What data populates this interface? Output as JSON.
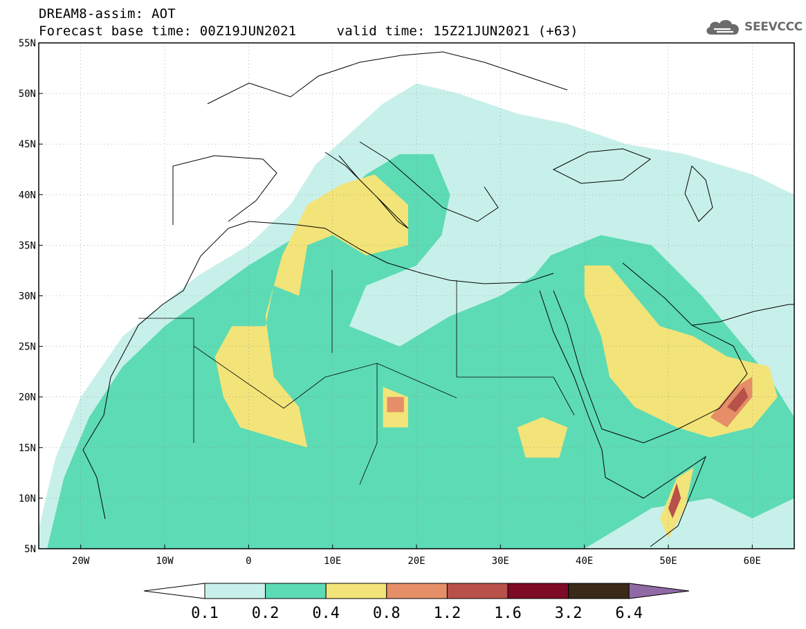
{
  "header": {
    "title_line1": "DREAM8-assim: AOT",
    "title_line2": "Forecast base time: 00Z19JUN2021     valid time: 15Z21JUN2021 (+63)"
  },
  "logo": {
    "text": "SEEVCCC",
    "icon": "cloud-icon"
  },
  "map": {
    "projection": "lat-lon",
    "lon_range": [
      -25,
      65
    ],
    "lat_range": [
      5,
      55
    ],
    "grid": "dotted",
    "lat_ticks": [
      {
        "value": 55,
        "label": "55N"
      },
      {
        "value": 50,
        "label": "50N"
      },
      {
        "value": 45,
        "label": "45N"
      },
      {
        "value": 40,
        "label": "40N"
      },
      {
        "value": 35,
        "label": "35N"
      },
      {
        "value": 30,
        "label": "30N"
      },
      {
        "value": 25,
        "label": "25N"
      },
      {
        "value": 20,
        "label": "20N"
      },
      {
        "value": 15,
        "label": "15N"
      },
      {
        "value": 10,
        "label": "10N"
      },
      {
        "value": 5,
        "label": "5N"
      }
    ],
    "lon_ticks": [
      {
        "value": -20,
        "label": "20W"
      },
      {
        "value": -10,
        "label": "10W"
      },
      {
        "value": 0,
        "label": "0"
      },
      {
        "value": 10,
        "label": "10E"
      },
      {
        "value": 20,
        "label": "20E"
      },
      {
        "value": 30,
        "label": "30E"
      },
      {
        "value": 40,
        "label": "40E"
      },
      {
        "value": 50,
        "label": "50E"
      },
      {
        "value": 60,
        "label": "60E"
      }
    ],
    "fields": [
      {
        "level": 0,
        "points": [
          [
            -25,
            7
          ],
          [
            -23,
            14
          ],
          [
            -20,
            20
          ],
          [
            -15,
            26
          ],
          [
            -6,
            32
          ],
          [
            0,
            35
          ],
          [
            5,
            39
          ],
          [
            8,
            43
          ],
          [
            12,
            46
          ],
          [
            16,
            49
          ],
          [
            20,
            51
          ],
          [
            25,
            50
          ],
          [
            32,
            48
          ],
          [
            38,
            47
          ],
          [
            45,
            45
          ],
          [
            52,
            44
          ],
          [
            60,
            42
          ],
          [
            65,
            40
          ],
          [
            65,
            5
          ],
          [
            -25,
            5
          ]
        ]
      },
      {
        "level": 1,
        "points": [
          [
            -24,
            5
          ],
          [
            -22,
            12
          ],
          [
            -19,
            18
          ],
          [
            -15,
            23
          ],
          [
            -10,
            27
          ],
          [
            -5,
            30
          ],
          [
            0,
            33
          ],
          [
            6,
            36
          ],
          [
            10,
            39
          ],
          [
            14,
            42
          ],
          [
            18,
            44
          ],
          [
            22,
            44
          ],
          [
            24,
            40
          ],
          [
            23,
            36
          ],
          [
            20,
            33
          ],
          [
            14,
            31
          ],
          [
            12,
            27
          ],
          [
            18,
            25
          ],
          [
            24,
            28
          ],
          [
            30,
            30
          ],
          [
            34,
            32
          ],
          [
            36,
            34
          ],
          [
            42,
            36
          ],
          [
            48,
            35
          ],
          [
            54,
            30
          ],
          [
            58,
            26
          ],
          [
            62,
            22
          ],
          [
            65,
            18
          ],
          [
            65,
            10
          ],
          [
            60,
            8
          ],
          [
            55,
            10
          ],
          [
            48,
            9
          ],
          [
            44,
            7
          ],
          [
            40,
            5
          ]
        ]
      },
      {
        "level": 2,
        "points": [
          [
            -4,
            24
          ],
          [
            -3,
            20
          ],
          [
            -1,
            17
          ],
          [
            3,
            16
          ],
          [
            7,
            15
          ],
          [
            6,
            19
          ],
          [
            3,
            22
          ],
          [
            2,
            28
          ],
          [
            4,
            34
          ],
          [
            7,
            39
          ],
          [
            11,
            41
          ],
          [
            15,
            42
          ],
          [
            19,
            39
          ],
          [
            19,
            35
          ],
          [
            14,
            34
          ],
          [
            10,
            36
          ],
          [
            7,
            35
          ],
          [
            6,
            30
          ],
          [
            3,
            31
          ],
          [
            2,
            27
          ],
          [
            -2,
            27
          ]
        ]
      },
      {
        "level": 2,
        "points": [
          [
            40,
            33
          ],
          [
            43,
            33
          ],
          [
            46,
            30
          ],
          [
            49,
            27
          ],
          [
            53,
            26
          ],
          [
            57,
            24
          ],
          [
            62,
            23
          ],
          [
            63,
            20
          ],
          [
            60,
            17
          ],
          [
            55,
            16
          ],
          [
            51,
            17
          ],
          [
            46,
            19
          ],
          [
            43,
            22
          ],
          [
            42,
            26
          ],
          [
            40,
            30
          ]
        ]
      },
      {
        "level": 2,
        "points": [
          [
            32,
            17
          ],
          [
            35,
            18
          ],
          [
            38,
            17
          ],
          [
            37,
            14
          ],
          [
            33,
            14
          ]
        ]
      },
      {
        "level": 2,
        "points": [
          [
            49,
            8
          ],
          [
            51,
            12
          ],
          [
            53,
            13
          ],
          [
            52,
            9
          ],
          [
            50,
            6
          ]
        ]
      },
      {
        "level": 2,
        "points": [
          [
            16,
            21
          ],
          [
            19,
            20
          ],
          [
            19,
            17
          ],
          [
            16,
            17
          ]
        ]
      },
      {
        "level": 3,
        "points": [
          [
            55,
            18
          ],
          [
            58,
            21
          ],
          [
            60,
            22
          ],
          [
            60,
            20
          ],
          [
            57,
            17
          ]
        ]
      },
      {
        "level": 3,
        "points": [
          [
            16.5,
            20
          ],
          [
            18.5,
            20
          ],
          [
            18.5,
            18.5
          ],
          [
            16.5,
            18.5
          ]
        ]
      },
      {
        "level": 4,
        "points": [
          [
            50,
            9
          ],
          [
            51,
            11.5
          ],
          [
            51.5,
            10
          ],
          [
            50.5,
            8
          ]
        ]
      },
      {
        "level": 4,
        "points": [
          [
            57,
            19
          ],
          [
            59,
            21
          ],
          [
            59.5,
            20
          ],
          [
            58,
            18.5
          ]
        ]
      }
    ],
    "colors": [
      "#c8f0ea",
      "#5ddbb4",
      "#f2e479",
      "#e58e67",
      "#b7514a",
      "#7d0a26",
      "#3a2a17",
      "#8f6aa5"
    ]
  },
  "colorbar": {
    "labels": [
      "0.1",
      "0.2",
      "0.4",
      "0.8",
      "1.2",
      "1.6",
      "3.2",
      "6.4"
    ],
    "colors": [
      "#c8f0ea",
      "#5ddbb4",
      "#f2e479",
      "#e58e67",
      "#b7514a",
      "#7d0a26",
      "#3a2a17",
      "#8f6aa5"
    ],
    "under_color": "#ffffff"
  }
}
